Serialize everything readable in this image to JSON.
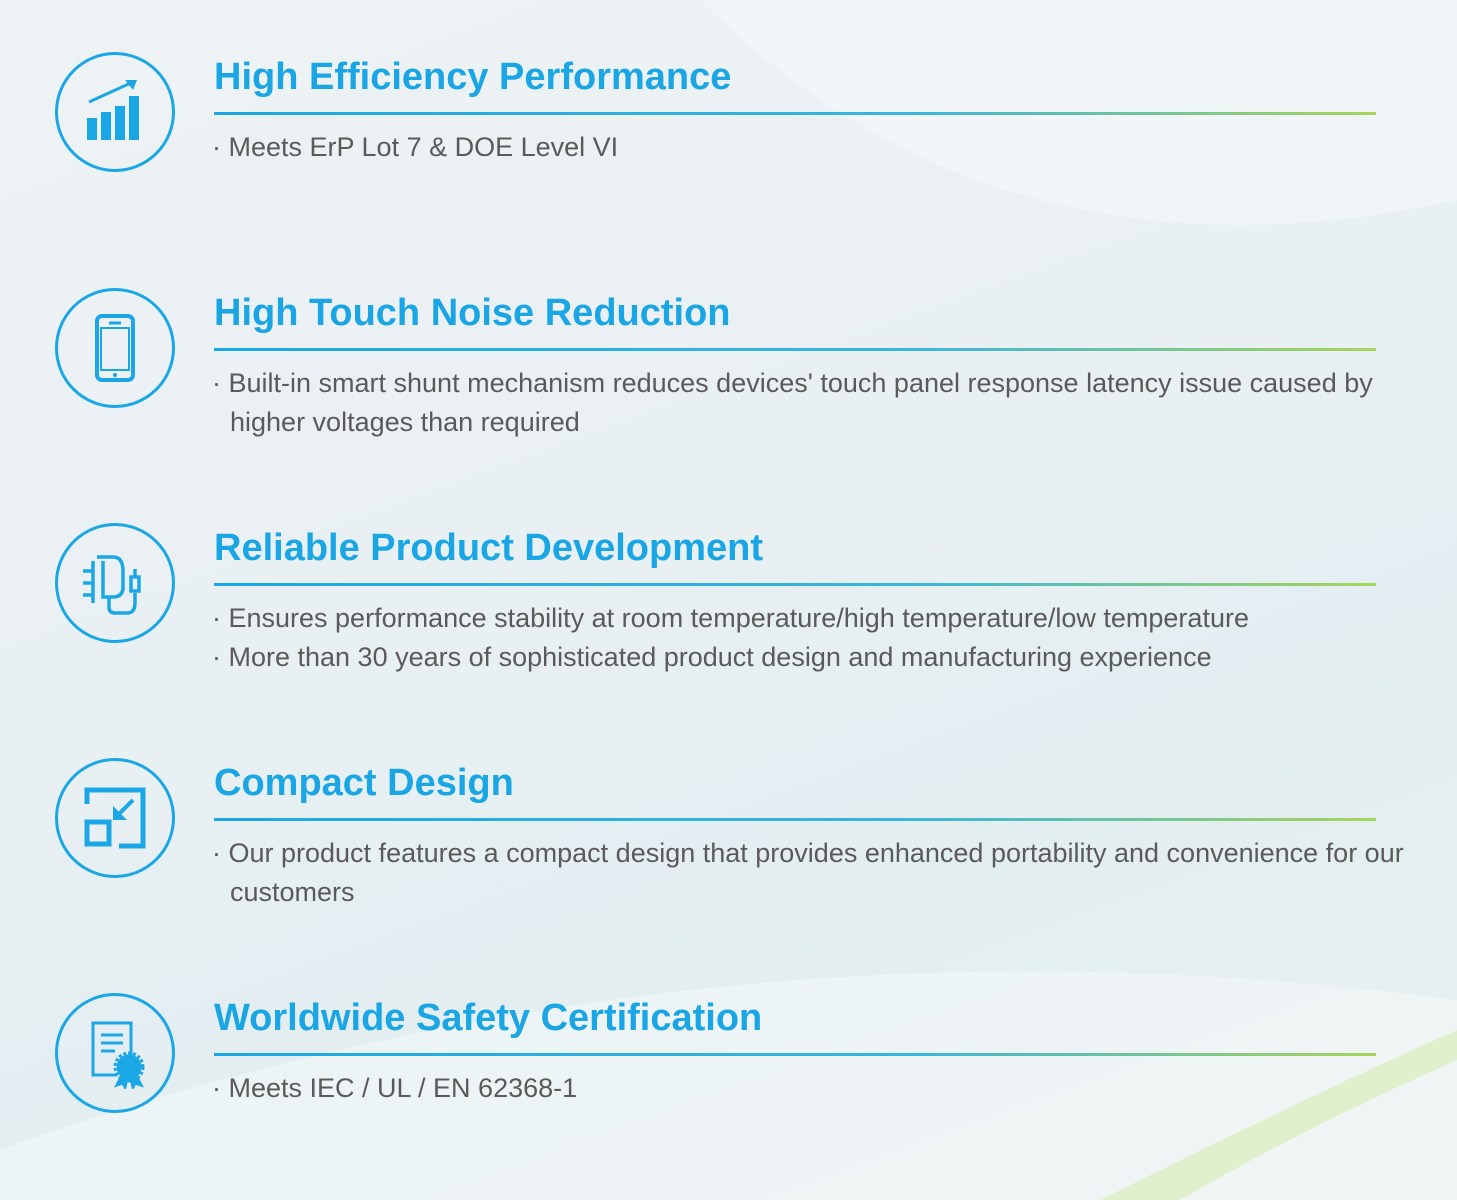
{
  "accent_color": "#1aa6e4",
  "accent_gradient_end": "#a8d45a",
  "features": [
    {
      "icon": "bar-chart-growth-icon",
      "title": "High Efficiency Performance",
      "bullets": [
        "· Meets ErP Lot 7 & DOE Level VI"
      ]
    },
    {
      "icon": "smartphone-icon",
      "title": "High Touch Noise Reduction",
      "bullets": [
        "· Built-in smart shunt mechanism reduces devices' touch panel response latency issue caused by higher voltages than required"
      ]
    },
    {
      "icon": "power-adapter-icon",
      "title": "Reliable Product Development",
      "bullets": [
        "· Ensures performance stability at room temperature/high temperature/low temperature",
        "· More than 30 years of sophisticated product  design and manufacturing experience"
      ]
    },
    {
      "icon": "compact-resize-icon",
      "title": "Compact Design",
      "bullets": [
        "· Our product features a compact design that provides enhanced portability and convenience for our customers"
      ]
    },
    {
      "icon": "certificate-icon",
      "title": "Worldwide Safety Certification",
      "bullets": [
        "· Meets IEC / UL / EN 62368-1"
      ]
    }
  ]
}
